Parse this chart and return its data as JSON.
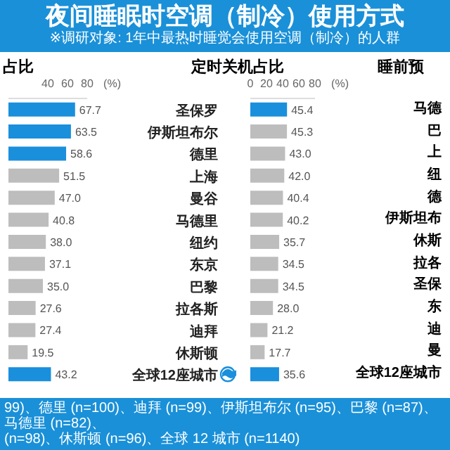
{
  "chart_data": [
    {
      "type": "other",
      "title": "夜间睡眠时空调（制冷）使用方式",
      "subtitle": "※调研对象: 1年中最热时睡觉会使用空调（制冷）的人群",
      "annotations": [
        "99)、德里 (n=100)、迪拜 (n=99)、伊斯坦布尔 (n=95)、巴黎 (n=87)、马德里 (n=82)、",
        "(n=98)、休斯顿 (n=96)、全球 12 城市 (n=1140)"
      ]
    },
    {
      "type": "bar",
      "orientation": "horizontal",
      "title": "占比",
      "xlabel": "(%)",
      "categories": [
        null,
        null,
        null,
        null,
        null,
        null,
        null,
        null,
        null,
        null,
        null,
        null,
        null
      ],
      "values": [
        67.7,
        63.5,
        58.6,
        51.5,
        47.0,
        40.8,
        38.0,
        37.1,
        35.0,
        27.6,
        27.4,
        19.5,
        43.2
      ],
      "value_labels": [
        "67.7",
        "63.5",
        "58.6",
        "51.5",
        "47.0",
        "40.8",
        "38.0",
        "37.1",
        "35.0",
        "27.6",
        "27.4",
        "19.5",
        "43.2"
      ],
      "colors": [
        "#1a8fdc",
        "#1a8fdc",
        "#1a8fdc",
        "#bdbdbd",
        "#bdbdbd",
        "#bdbdbd",
        "#bdbdbd",
        "#bdbdbd",
        "#bdbdbd",
        "#bdbdbd",
        "#bdbdbd",
        "#bdbdbd",
        "#1a8fdc"
      ],
      "xlim": [
        0,
        80
      ],
      "xticks": [
        40,
        60,
        80
      ],
      "tick_labels": "x"
    },
    {
      "type": "bar",
      "orientation": "horizontal",
      "title": "定时关机占比",
      "xlabel": "(%)",
      "categories": [
        "圣保罗",
        "伊斯坦布尔",
        "德里",
        "上海",
        "曼谷",
        "马德里",
        "纽约",
        "东京",
        "巴黎",
        "拉各斯",
        "迪拜",
        "休斯顿",
        "全球12座城市"
      ],
      "values": [
        45.4,
        45.3,
        43.0,
        42.0,
        40.4,
        40.2,
        35.7,
        34.5,
        34.5,
        28.0,
        21.2,
        17.7,
        35.6
      ],
      "value_labels": [
        "45.4",
        "45.3",
        "43.0",
        "42.0",
        "40.4",
        "40.2",
        "35.7",
        "34.5",
        "34.5",
        "28.0",
        "21.2",
        "17.7",
        "35.6"
      ],
      "colors": [
        "#1a8fdc",
        "#bdbdbd",
        "#bdbdbd",
        "#bdbdbd",
        "#bdbdbd",
        "#bdbdbd",
        "#bdbdbd",
        "#bdbdbd",
        "#bdbdbd",
        "#bdbdbd",
        "#bdbdbd",
        "#bdbdbd",
        "#1a8fdc"
      ],
      "xlim": [
        0,
        80
      ],
      "xticks": [
        0,
        20,
        40,
        60,
        80
      ]
    },
    {
      "type": "other",
      "title": "睡前预",
      "annotations": [
        "马德",
        "巴",
        "上",
        "纽",
        "德",
        "伊斯坦布",
        "休斯",
        "拉各",
        "圣保",
        "东",
        "迪",
        "曼",
        "全球12座城市"
      ]
    }
  ]
}
